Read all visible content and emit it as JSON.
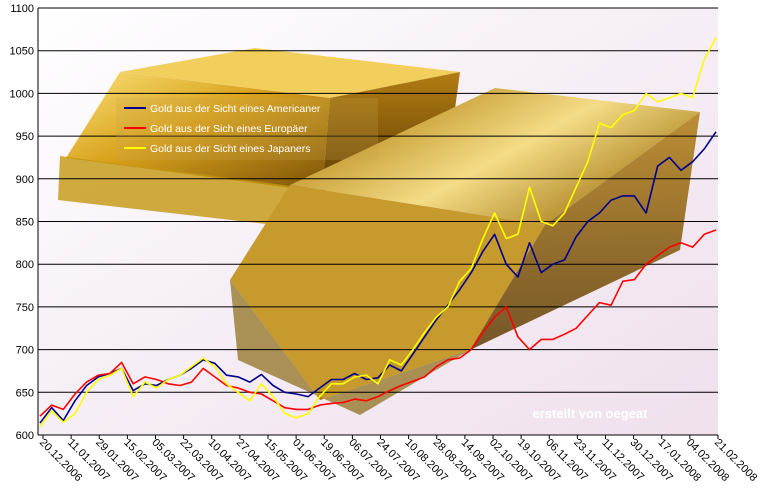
{
  "chart_data": {
    "type": "line",
    "ylim": [
      600,
      1100
    ],
    "yticks": [
      600,
      650,
      700,
      750,
      800,
      850,
      900,
      950,
      1000,
      1050,
      1100
    ],
    "grid": "horizontal",
    "legend_position": "upper-left inside plot",
    "x_tick_labels": [
      "20.12.2006",
      "11.01.2007",
      "29.01.2007",
      "15.02.2007",
      "05.03.2007",
      "22.03.2007",
      "10.04.2007",
      "27.04.2007",
      "15.05.2007",
      "01.06.2007",
      "19.06.2007",
      "06.07.2007",
      "24.07.2007",
      "10.08.2007",
      "28.08.2007",
      "14.09.2007",
      "02.10.2007",
      "19.10.2007",
      "06.11.2007",
      "23.11.2007",
      "11.12.2007",
      "30.12.2007",
      "17.01.2008",
      "04.02.2008",
      "21.02.2008"
    ],
    "annotation": "erstellt von oegeat",
    "series": [
      {
        "name": "Gold aus der Sicht eines Americaner",
        "color": "#00008b",
        "values": [
          614,
          632,
          617,
          640,
          658,
          668,
          672,
          678,
          652,
          660,
          658,
          665,
          670,
          678,
          688,
          684,
          670,
          668,
          662,
          671,
          658,
          650,
          648,
          645,
          655,
          665,
          665,
          672,
          665,
          667,
          682,
          675,
          695,
          715,
          735,
          752,
          770,
          790,
          815,
          835,
          800,
          785,
          825,
          790,
          800,
          805,
          832,
          850,
          860,
          875,
          880,
          880,
          860,
          915,
          925,
          910,
          920,
          935,
          955
        ]
      },
      {
        "name": "Gold aus der Sich eines Europäer",
        "color": "#ff0000",
        "values": [
          622,
          635,
          630,
          648,
          662,
          670,
          672,
          685,
          660,
          668,
          665,
          660,
          658,
          662,
          678,
          668,
          658,
          655,
          650,
          648,
          640,
          632,
          630,
          630,
          635,
          637,
          638,
          642,
          640,
          645,
          652,
          658,
          663,
          668,
          680,
          688,
          690,
          700,
          720,
          738,
          750,
          715,
          700,
          712,
          712,
          718,
          725,
          740,
          755,
          752,
          780,
          782,
          800,
          810,
          820,
          825,
          820,
          835,
          840
        ]
      },
      {
        "name": "Gold aus der Sicht eines Japaners",
        "color": "#ffff00",
        "values": [
          610,
          628,
          615,
          625,
          650,
          665,
          670,
          678,
          645,
          662,
          655,
          665,
          670,
          680,
          690,
          680,
          660,
          650,
          640,
          660,
          645,
          625,
          620,
          625,
          645,
          660,
          660,
          668,
          670,
          660,
          688,
          682,
          700,
          720,
          738,
          750,
          780,
          795,
          830,
          860,
          830,
          835,
          890,
          850,
          845,
          860,
          890,
          920,
          965,
          960,
          975,
          980,
          1000,
          990,
          995,
          1000,
          995,
          1040,
          1065
        ]
      }
    ]
  }
}
